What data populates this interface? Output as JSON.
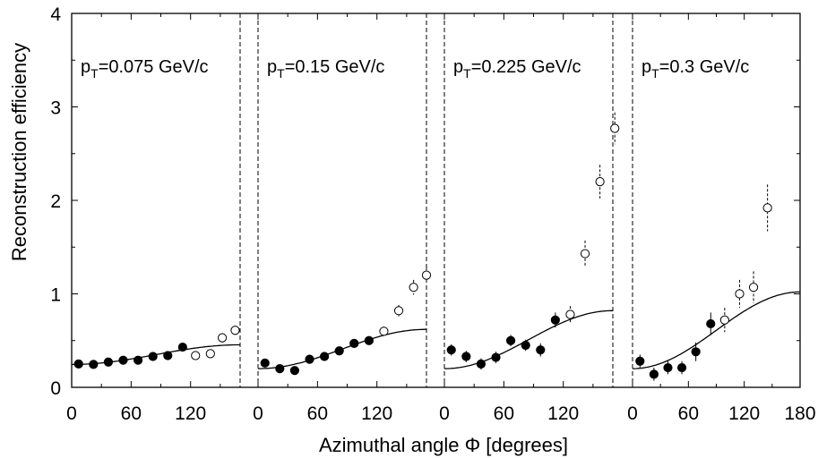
{
  "chart_data": {
    "type": "scatter",
    "xlabel": "Azimuthal angle Φ [degrees]",
    "ylabel": "Reconstruction efficiency",
    "ylim": [
      0,
      4
    ],
    "y_ticks": [
      "0",
      "1",
      "2",
      "3",
      "4"
    ],
    "x_ticks": [
      "0",
      "60",
      "120",
      "180"
    ],
    "grid": false,
    "panels": [
      {
        "label_main": "p",
        "label_sub": "T",
        "label_rest": "=0.075 GeV/c",
        "xlim": [
          0,
          170
        ],
        "x_tick_values": [
          0,
          60,
          120
        ],
        "x_tick_labels": [
          "0",
          "60",
          "120"
        ],
        "curve": {
          "base": 0.245,
          "amp": 0.21
        },
        "filled": [
          {
            "x": 7,
            "y": 0.25,
            "err": 0.02
          },
          {
            "x": 22,
            "y": 0.245,
            "err": 0.02
          },
          {
            "x": 37,
            "y": 0.27,
            "err": 0.02
          },
          {
            "x": 52,
            "y": 0.29,
            "err": 0.02
          },
          {
            "x": 67,
            "y": 0.29,
            "err": 0.02
          },
          {
            "x": 82,
            "y": 0.33,
            "err": 0.02
          },
          {
            "x": 97,
            "y": 0.34,
            "err": 0.02
          },
          {
            "x": 112,
            "y": 0.43,
            "err": 0.03
          }
        ],
        "open": [
          {
            "x": 125,
            "y": 0.34,
            "err": 0.04
          },
          {
            "x": 140,
            "y": 0.36,
            "err": 0.04
          },
          {
            "x": 152,
            "y": 0.53,
            "err": 0.05
          },
          {
            "x": 165,
            "y": 0.61,
            "err": 0.05
          }
        ]
      },
      {
        "label_main": "p",
        "label_sub": "T",
        "label_rest": "=0.15 GeV/c",
        "xlim": [
          0,
          170
        ],
        "x_tick_values": [
          0,
          60,
          120
        ],
        "x_tick_labels": [
          "0",
          "60",
          "120"
        ],
        "curve": {
          "base": 0.2,
          "amp": 0.42
        },
        "filled": [
          {
            "x": 7,
            "y": 0.26,
            "err": 0.02
          },
          {
            "x": 22,
            "y": 0.2,
            "err": 0.02
          },
          {
            "x": 37,
            "y": 0.18,
            "err": 0.02
          },
          {
            "x": 52,
            "y": 0.3,
            "err": 0.02
          },
          {
            "x": 67,
            "y": 0.33,
            "err": 0.02
          },
          {
            "x": 82,
            "y": 0.39,
            "err": 0.02
          },
          {
            "x": 97,
            "y": 0.47,
            "err": 0.03
          },
          {
            "x": 112,
            "y": 0.5,
            "err": 0.03
          }
        ],
        "open": [
          {
            "x": 127,
            "y": 0.6,
            "err": 0.05
          },
          {
            "x": 142,
            "y": 0.82,
            "err": 0.06
          },
          {
            "x": 157,
            "y": 1.07,
            "err": 0.08
          },
          {
            "x": 170,
            "y": 1.2,
            "err": 0.08
          }
        ]
      },
      {
        "label_main": "p",
        "label_sub": "T",
        "label_rest": "=0.225 GeV/c",
        "xlim": [
          0,
          170
        ],
        "x_tick_values": [
          0,
          60,
          120
        ],
        "x_tick_labels": [
          "0",
          "60",
          "120"
        ],
        "curve": {
          "base": 0.2,
          "amp": 0.62
        },
        "filled": [
          {
            "x": 7,
            "y": 0.4,
            "err": 0.06
          },
          {
            "x": 22,
            "y": 0.33,
            "err": 0.06
          },
          {
            "x": 37,
            "y": 0.25,
            "err": 0.06
          },
          {
            "x": 52,
            "y": 0.32,
            "err": 0.06
          },
          {
            "x": 67,
            "y": 0.5,
            "err": 0.06
          },
          {
            "x": 82,
            "y": 0.45,
            "err": 0.06
          },
          {
            "x": 97,
            "y": 0.4,
            "err": 0.07
          },
          {
            "x": 112,
            "y": 0.72,
            "err": 0.08
          }
        ],
        "open": [
          {
            "x": 127,
            "y": 0.78,
            "err": 0.09
          },
          {
            "x": 142,
            "y": 1.43,
            "err": 0.14
          },
          {
            "x": 157,
            "y": 2.2,
            "err": 0.18
          },
          {
            "x": 172,
            "y": 2.77,
            "err": 0.17
          }
        ]
      },
      {
        "label_main": "p",
        "label_sub": "T",
        "label_rest": "=0.3 GeV/c",
        "xlim": [
          0,
          180
        ],
        "x_tick_values": [
          0,
          60,
          120,
          180
        ],
        "x_tick_labels": [
          "0",
          "60",
          "120",
          "180"
        ],
        "curve": {
          "base": 0.2,
          "amp": 0.82
        },
        "filled": [
          {
            "x": 8,
            "y": 0.28,
            "err": 0.07
          },
          {
            "x": 23,
            "y": 0.14,
            "err": 0.07
          },
          {
            "x": 38,
            "y": 0.21,
            "err": 0.07
          },
          {
            "x": 53,
            "y": 0.21,
            "err": 0.07
          },
          {
            "x": 68,
            "y": 0.38,
            "err": 0.1
          },
          {
            "x": 84,
            "y": 0.68,
            "err": 0.12
          }
        ],
        "open": [
          {
            "x": 99,
            "y": 0.72,
            "err": 0.13
          },
          {
            "x": 115,
            "y": 1.0,
            "err": 0.15
          },
          {
            "x": 130,
            "y": 1.07,
            "err": 0.17
          },
          {
            "x": 145,
            "y": 1.92,
            "err": 0.25
          }
        ]
      }
    ]
  }
}
